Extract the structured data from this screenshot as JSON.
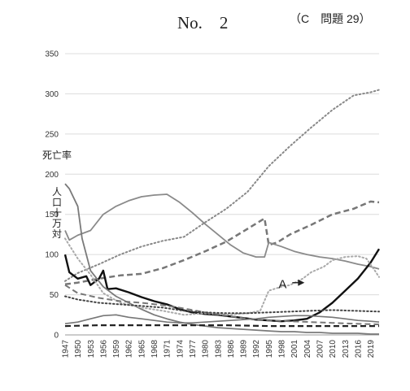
{
  "header": {
    "number": "No.　2",
    "question": "（C　問題 29）"
  },
  "chart_data": {
    "type": "line",
    "title": "",
    "xlabel": "",
    "ylabel": "死亡率　人口十万対",
    "ylabel_line1": "死亡率",
    "ylabel_line2": [
      "人",
      "口",
      "十",
      "万",
      "対"
    ],
    "ylim": [
      0,
      350
    ],
    "xlim": [
      1947,
      2021
    ],
    "yticks": [
      0,
      50,
      100,
      150,
      200,
      250,
      300,
      350
    ],
    "xticks": [
      1947,
      1950,
      1953,
      1956,
      1959,
      1962,
      1965,
      1968,
      1971,
      1974,
      1977,
      1980,
      1983,
      1986,
      1989,
      1992,
      1995,
      1998,
      2001,
      2004,
      2007,
      2010,
      2013,
      2016,
      2019
    ],
    "grid": "horizontal",
    "annotation": {
      "label": "A",
      "x": 2004,
      "y": 65
    },
    "series": [
      {
        "color": "#888888",
        "style": "dotted",
        "width": 2,
        "x": [
          1947,
          1950,
          1955,
          1960,
          1965,
          1970,
          1975,
          1980,
          1985,
          1990,
          1995,
          2000,
          2005,
          2010,
          2015,
          2019,
          2021
        ],
        "y": [
          67,
          77,
          88,
          100,
          110,
          117,
          122,
          140,
          157,
          178,
          210,
          235,
          258,
          280,
          298,
          302,
          305
        ]
      },
      {
        "color": "#777777",
        "style": "dashed",
        "width": 2.5,
        "x": [
          1947,
          1950,
          1955,
          1960,
          1965,
          1970,
          1975,
          1980,
          1985,
          1990,
          1994,
          1995,
          1997,
          2000,
          2005,
          2010,
          2015,
          2019,
          2021
        ],
        "y": [
          63,
          65,
          70,
          74,
          76,
          83,
          93,
          104,
          116,
          132,
          145,
          112,
          115,
          125,
          137,
          150,
          157,
          166,
          165
        ]
      },
      {
        "color": "#8a8a8a",
        "style": "solid",
        "width": 1.8,
        "x": [
          1947,
          1948,
          1950,
          1953,
          1956,
          1959,
          1962,
          1965,
          1968,
          1971,
          1974,
          1977,
          1980,
          1983,
          1986,
          1989,
          1992,
          1994,
          1995,
          1998,
          2001,
          2004,
          2007,
          2010,
          2013,
          2016,
          2019,
          2021
        ],
        "y": [
          130,
          118,
          124,
          130,
          150,
          160,
          167,
          172,
          174,
          175,
          165,
          152,
          138,
          125,
          112,
          102,
          97,
          97,
          115,
          110,
          104,
          100,
          97,
          95,
          92,
          88,
          85,
          82
        ]
      },
      {
        "color": "#111111",
        "style": "solid",
        "width": 2.4,
        "x": [
          1947,
          1948,
          1950,
          1952,
          1953,
          1955,
          1956,
          1957,
          1959,
          1962,
          1965,
          1968,
          1971,
          1974,
          1977,
          1980,
          1983,
          1986,
          1989,
          1992,
          1995,
          1998,
          2001,
          2004,
          2007,
          2010,
          2013,
          2016,
          2019,
          2021
        ],
        "y": [
          100,
          78,
          70,
          73,
          62,
          70,
          80,
          57,
          58,
          53,
          47,
          42,
          38,
          32,
          28,
          26,
          25,
          23,
          21,
          19,
          18,
          17,
          18,
          20,
          28,
          40,
          55,
          70,
          90,
          107
        ]
      },
      {
        "color": "#7a7a7a",
        "style": "solid",
        "width": 1.8,
        "x": [
          1947,
          1948,
          1950,
          1951,
          1953,
          1956,
          1959,
          1962,
          1965,
          1968,
          1971,
          1974,
          1977,
          1980,
          1983,
          1986,
          1989,
          1992,
          1995,
          1998,
          2001,
          2004,
          2007,
          2010,
          2013,
          2016,
          2019,
          2021
        ],
        "y": [
          188,
          182,
          160,
          120,
          80,
          60,
          48,
          40,
          32,
          25,
          20,
          16,
          13,
          11,
          9,
          8,
          7,
          6,
          5,
          4,
          4,
          3,
          3,
          2,
          2,
          2,
          1,
          1
        ]
      },
      {
        "color": "#aaaaaa",
        "style": "dotted",
        "width": 2,
        "x": [
          1947,
          1950,
          1953,
          1956,
          1960,
          1965,
          1970,
          1975,
          1980,
          1985,
          1990,
          1993,
          1995,
          1998,
          2000,
          2003,
          2005,
          2008,
          2010,
          2013,
          2016,
          2018,
          2020,
          2021
        ],
        "y": [
          120,
          95,
          75,
          52,
          40,
          34,
          30,
          25,
          27,
          25,
          27,
          30,
          55,
          60,
          62,
          70,
          78,
          85,
          93,
          97,
          98,
          95,
          80,
          72
        ]
      },
      {
        "color": "#777777",
        "style": "dashed",
        "width": 2,
        "x": [
          1947,
          1950,
          1955,
          1960,
          1965,
          1970,
          1975,
          1980,
          1985,
          1990,
          1995,
          2000,
          2005,
          2010,
          2015,
          2021
        ],
        "y": [
          62,
          52,
          46,
          42,
          40,
          37,
          33,
          28,
          24,
          20,
          18,
          17,
          16,
          15,
          14,
          13
        ]
      },
      {
        "color": "#444444",
        "style": "dotted",
        "width": 2,
        "x": [
          1947,
          1950,
          1955,
          1960,
          1965,
          1970,
          1975,
          1980,
          1985,
          1990,
          1995,
          2000,
          2005,
          2010,
          2015,
          2021
        ],
        "y": [
          48,
          44,
          40,
          38,
          36,
          34,
          30,
          28,
          27,
          27,
          28,
          29,
          30,
          31,
          30,
          29
        ]
      },
      {
        "color": "#777777",
        "style": "solid",
        "width": 1.6,
        "x": [
          1947,
          1950,
          1953,
          1956,
          1959,
          1962,
          1965,
          1968,
          1971,
          1974,
          1977,
          1980,
          1983,
          1986,
          1989,
          1992,
          1995,
          1998,
          2001,
          2004,
          2007,
          2010,
          2013,
          2016,
          2019,
          2021
        ],
        "y": [
          14,
          16,
          20,
          24,
          25,
          22,
          20,
          18,
          16,
          15,
          15,
          16,
          17,
          18,
          19,
          20,
          22,
          23,
          24,
          24,
          23,
          22,
          20,
          18,
          17,
          16
        ]
      },
      {
        "color": "#222222",
        "style": "dashed",
        "width": 2.2,
        "x": [
          1947,
          1955,
          1965,
          1975,
          1985,
          1995,
          2005,
          2015,
          2021
        ],
        "y": [
          11,
          12,
          12,
          12,
          12,
          11,
          11,
          11,
          11
        ]
      }
    ]
  }
}
